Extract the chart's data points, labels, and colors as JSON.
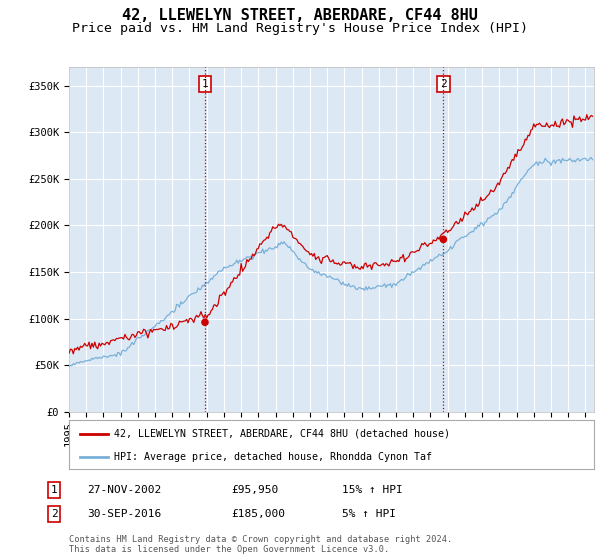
{
  "title": "42, LLEWELYN STREET, ABERDARE, CF44 8HU",
  "subtitle": "Price paid vs. HM Land Registry's House Price Index (HPI)",
  "xlim_start": 1995.0,
  "xlim_end": 2025.5,
  "ylim": [
    0,
    370000
  ],
  "yticks": [
    0,
    50000,
    100000,
    150000,
    200000,
    250000,
    300000,
    350000
  ],
  "ytick_labels": [
    "£0",
    "£50K",
    "£100K",
    "£150K",
    "£200K",
    "£250K",
    "£300K",
    "£350K"
  ],
  "background_color": "#dce9f5",
  "plot_bg_color": "#dce9f5",
  "grid_color": "#ffffff",
  "sale1_x": 2002.9,
  "sale1_y": 95950,
  "sale1_label": "1",
  "sale2_x": 2016.75,
  "sale2_y": 185000,
  "sale2_label": "2",
  "vline_color": "#cc0000",
  "vline_style": ":",
  "sale_dot_color": "#cc0000",
  "hpi_line_color": "#7ab0d8",
  "price_line_color": "#cc0000",
  "legend_label1": "42, LLEWELYN STREET, ABERDARE, CF44 8HU (detached house)",
  "legend_label2": "HPI: Average price, detached house, Rhondda Cynon Taf",
  "table_row1": [
    "1",
    "27-NOV-2002",
    "£95,950",
    "15% ↑ HPI"
  ],
  "table_row2": [
    "2",
    "30-SEP-2016",
    "£185,000",
    "5% ↑ HPI"
  ],
  "footnote": "Contains HM Land Registry data © Crown copyright and database right 2024.\nThis data is licensed under the Open Government Licence v3.0.",
  "title_fontsize": 11,
  "subtitle_fontsize": 9.5,
  "tick_fontsize": 7.5,
  "label_fontsize": 8
}
